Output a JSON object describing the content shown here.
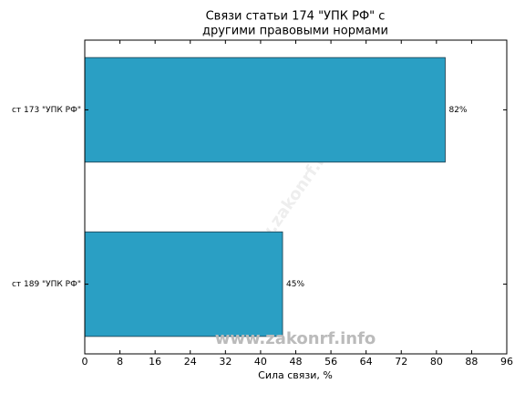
{
  "chart_data": {
    "type": "barh",
    "title": [
      "Связи статьи 174 \"УПК РФ\" с",
      "другими правовыми нормами"
    ],
    "xlabel": "Сила связи, %",
    "categories": [
      "ст 173 \"УПК РФ\"",
      "ст 189 \"УПК РФ\""
    ],
    "values": [
      82,
      45
    ],
    "value_labels": [
      "82%",
      "45%"
    ],
    "color": "#2a9fc4",
    "xlim": [
      0,
      96
    ],
    "xticks": [
      0,
      8,
      16,
      24,
      32,
      40,
      48,
      56,
      64,
      72,
      80,
      88,
      96
    ],
    "watermark": "www.zakonrf.info"
  }
}
